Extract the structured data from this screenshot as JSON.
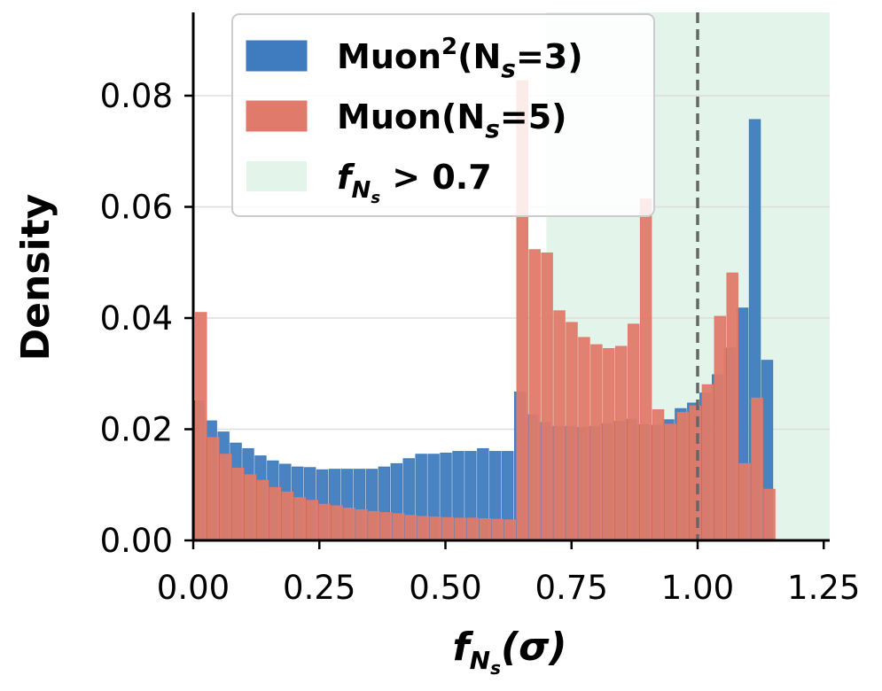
{
  "chart_data": {
    "type": "bar",
    "title": "",
    "xlabel": "f_Ns(σ)",
    "ylabel": "Density",
    "xlim": [
      0.0,
      1.26
    ],
    "ylim": [
      0.0,
      0.094
    ],
    "grid": "horizontal",
    "bin_width": 0.0245,
    "x_ticks": [
      "0.00",
      "0.25",
      "0.50",
      "0.75",
      "1.00",
      "1.25"
    ],
    "x_tick_values": [
      0.0,
      0.25,
      0.5,
      0.75,
      1.0,
      1.25
    ],
    "y_ticks": [
      "0.00",
      "0.02",
      "0.04",
      "0.06",
      "0.08"
    ],
    "y_tick_values": [
      0.0,
      0.02,
      0.04,
      0.06,
      0.08
    ],
    "shaded_region": {
      "from": 0.7,
      "to": 1.26,
      "color": "#e3f4ea",
      "label": "f_Ns > 0.7"
    },
    "reference_line": {
      "x": 1.0,
      "style": "dashed",
      "color": "#666666"
    },
    "legend": {
      "placement": "top-center",
      "entries": [
        {
          "base": "Muon",
          "sup": "2",
          "params": "(N",
          "sub": "s",
          "tail": "=3)",
          "color": "#3f7cbf"
        },
        {
          "base": "Muon",
          "sup": "",
          "params": "(N",
          "sub": "s",
          "tail": "=5)",
          "color": "#e07a6a"
        },
        {
          "base": "f",
          "sup": "",
          "params": "",
          "sub": "Ns",
          "tail": " > 0.7",
          "color": "#e3f4ea"
        }
      ]
    },
    "series": [
      {
        "name": "Muon²(Ns=3)",
        "color": "#3f7cbf",
        "x": [
          0.0,
          0.0245,
          0.049,
          0.0735,
          0.098,
          0.1225,
          0.147,
          0.1715,
          0.196,
          0.2205,
          0.245,
          0.2695,
          0.294,
          0.3185,
          0.343,
          0.3675,
          0.392,
          0.4165,
          0.441,
          0.4655,
          0.49,
          0.5145,
          0.539,
          0.5635,
          0.588,
          0.6125,
          0.637,
          0.6615,
          0.686,
          0.7105,
          0.735,
          0.7595,
          0.784,
          0.8085,
          0.833,
          0.8575,
          0.882,
          0.9065,
          0.931,
          0.9555,
          0.98,
          1.0045,
          1.029,
          1.0535,
          1.078,
          1.1025,
          1.127,
          1.1515,
          1.176,
          1.2005
        ],
        "values": [
          0.0251,
          0.0215,
          0.0195,
          0.0175,
          0.0165,
          0.0152,
          0.0143,
          0.0137,
          0.0132,
          0.0131,
          0.0127,
          0.0128,
          0.0128,
          0.0128,
          0.0128,
          0.0132,
          0.0138,
          0.0147,
          0.0155,
          0.0155,
          0.0157,
          0.016,
          0.016,
          0.0165,
          0.016,
          0.016,
          0.0267,
          0.0226,
          0.0212,
          0.0205,
          0.0205,
          0.0203,
          0.0205,
          0.021,
          0.0214,
          0.0218,
          0.0208,
          0.0207,
          0.0217,
          0.0237,
          0.0247,
          0.0265,
          0.0298,
          0.0346,
          0.0418,
          0.0757,
          0.0324,
          0.0,
          0.0,
          0.0
        ]
      },
      {
        "name": "Muon(Ns=5)",
        "color": "#e07a6a",
        "x": [
          0.0045,
          0.029,
          0.0535,
          0.078,
          0.1025,
          0.127,
          0.1515,
          0.176,
          0.2005,
          0.225,
          0.2495,
          0.274,
          0.2985,
          0.323,
          0.3475,
          0.372,
          0.3965,
          0.421,
          0.4455,
          0.47,
          0.4945,
          0.519,
          0.5435,
          0.568,
          0.5925,
          0.617,
          0.6415,
          0.666,
          0.6905,
          0.715,
          0.7395,
          0.764,
          0.7885,
          0.813,
          0.8375,
          0.862,
          0.8865,
          0.911,
          0.9355,
          0.96,
          0.9845,
          1.009,
          1.0335,
          1.058,
          1.0825,
          1.107,
          1.1315,
          1.156,
          1.1805,
          1.205
        ],
        "values": [
          0.041,
          0.0185,
          0.0155,
          0.013,
          0.0118,
          0.0108,
          0.0095,
          0.0087,
          0.0077,
          0.0072,
          0.0065,
          0.0062,
          0.0058,
          0.0055,
          0.0052,
          0.005,
          0.0048,
          0.0045,
          0.0043,
          0.0042,
          0.0041,
          0.004,
          0.004,
          0.0039,
          0.0038,
          0.0037,
          0.0827,
          0.0523,
          0.0517,
          0.0413,
          0.0392,
          0.0365,
          0.0352,
          0.0345,
          0.0349,
          0.0389,
          0.0614,
          0.0235,
          0.0209,
          0.023,
          0.0242,
          0.028,
          0.0403,
          0.0481,
          0.0138,
          0.0256,
          0.0092,
          0.0,
          0.0,
          0.0
        ]
      }
    ]
  }
}
